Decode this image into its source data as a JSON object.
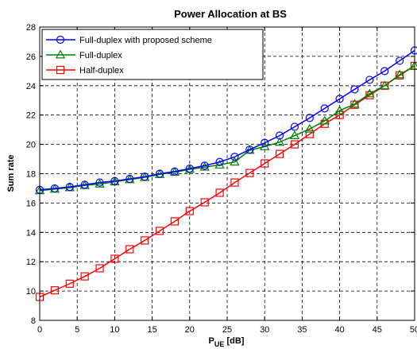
{
  "chart_data": {
    "type": "line",
    "title": "Power Allocation at BS",
    "xlabel_main": "P",
    "xlabel_sub": "UE",
    "xlabel_unit": " [dB]",
    "ylabel": "Sum rate",
    "xlim": [
      0,
      50
    ],
    "ylim": [
      8,
      28
    ],
    "xticks": [
      0,
      5,
      10,
      15,
      20,
      25,
      30,
      35,
      40,
      45,
      50
    ],
    "yticks": [
      8,
      10,
      12,
      14,
      16,
      18,
      20,
      22,
      24,
      26,
      28
    ],
    "grid": true,
    "grid_style": "dashed",
    "legend_position": "top-left",
    "x": [
      0,
      2,
      4,
      6,
      8,
      10,
      12,
      14,
      16,
      18,
      20,
      22,
      24,
      26,
      28,
      30,
      32,
      34,
      36,
      38,
      40,
      42,
      44,
      46,
      48,
      50
    ],
    "series": [
      {
        "name": "Full-duplex with proposed scheme",
        "color": "#0000ff",
        "marker": "circle",
        "values": [
          16.9,
          17.0,
          17.1,
          17.25,
          17.4,
          17.5,
          17.65,
          17.8,
          18.0,
          18.15,
          18.35,
          18.55,
          18.8,
          19.15,
          19.65,
          20.1,
          20.6,
          21.2,
          21.8,
          22.45,
          23.1,
          23.75,
          24.4,
          25.0,
          25.7,
          26.4
        ]
      },
      {
        "name": "Full-duplex",
        "color": "#008000",
        "marker": "triangle",
        "values": [
          16.85,
          16.95,
          17.05,
          17.2,
          17.3,
          17.45,
          17.6,
          17.75,
          17.95,
          18.1,
          18.3,
          18.45,
          18.6,
          18.8,
          19.6,
          19.85,
          20.15,
          20.6,
          21.05,
          21.6,
          22.3,
          22.75,
          23.45,
          24.0,
          24.75,
          25.35
        ]
      },
      {
        "name": "Half-duplex",
        "color": "#ff0000",
        "marker": "square",
        "values": [
          9.6,
          10.05,
          10.5,
          11.0,
          11.55,
          12.2,
          12.85,
          13.45,
          14.1,
          14.75,
          15.45,
          16.05,
          16.7,
          17.4,
          18.05,
          18.7,
          19.35,
          20.0,
          20.7,
          21.4,
          22.0,
          22.7,
          23.35,
          24.0,
          24.7,
          25.35
        ]
      }
    ]
  }
}
